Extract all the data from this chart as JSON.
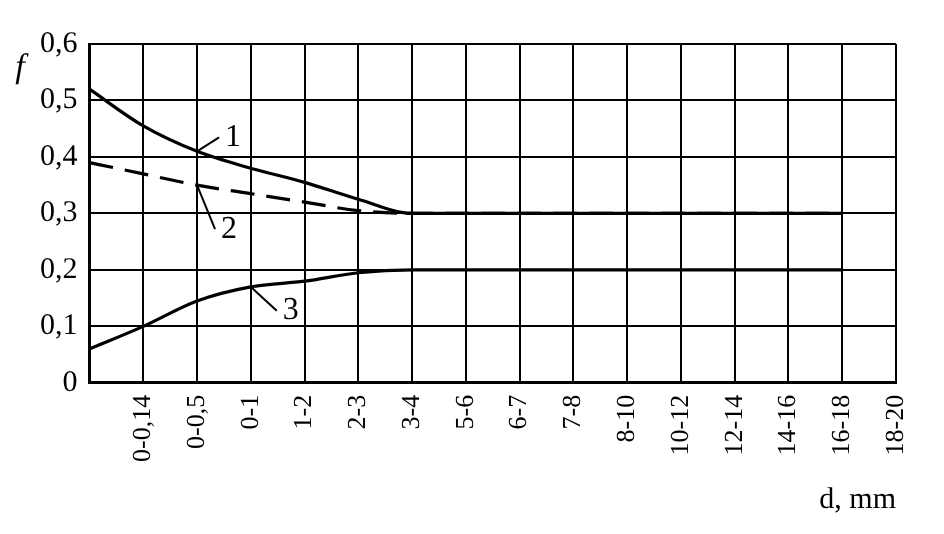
{
  "chart_data": {
    "type": "line",
    "xlabel": "d, mm",
    "ylabel": "f",
    "categories": [
      null,
      "0-0,14",
      "0-0,5",
      "0-1",
      "1-2",
      "2-3",
      "3-4",
      "5-6",
      "6-7",
      "7-8",
      "8-10",
      "10-12",
      "12-14",
      "14-16",
      "16-18",
      "18-20"
    ],
    "series": [
      {
        "color": "#000000",
        "line_style": "solid",
        "values": [
          0.52,
          0.455,
          0.41,
          0.38,
          0.355,
          0.325,
          0.3,
          0.3,
          0.3,
          0.3,
          0.3,
          0.3,
          0.3,
          0.3,
          0.3,
          null
        ]
      },
      {
        "color": "#000000",
        "line_style": "dashed",
        "values": [
          0.39,
          0.37,
          0.35,
          0.335,
          0.32,
          0.305,
          0.3,
          0.3,
          0.3,
          0.3,
          0.3,
          0.3,
          0.3,
          0.3,
          0.3,
          null
        ]
      },
      {
        "color": "#000000",
        "line_style": "solid",
        "values": [
          0.06,
          0.1,
          0.145,
          0.17,
          0.18,
          0.195,
          0.2,
          0.2,
          0.2,
          0.2,
          0.2,
          0.2,
          0.2,
          0.2,
          0.2,
          null
        ]
      }
    ],
    "annotations": [
      {
        "text": "1",
        "x": "0-0,5",
        "y": 0.41
      },
      {
        "text": "2",
        "x": "0-0,5",
        "y": 0.35
      },
      {
        "text": "3",
        "x": "0-1",
        "y": 0.17
      }
    ],
    "ylim": [
      0,
      0.6
    ],
    "yticks": [
      {
        "value": 0,
        "label": "0"
      },
      {
        "value": 0.1,
        "label": "0,1"
      },
      {
        "value": 0.2,
        "label": "0,2"
      },
      {
        "value": 0.3,
        "label": "0,3"
      },
      {
        "value": 0.4,
        "label": "0,4"
      },
      {
        "value": 0.5,
        "label": "0,5"
      },
      {
        "value": 0.6,
        "label": "0,6"
      }
    ],
    "grid": true,
    "legend": false,
    "marker": "none"
  }
}
